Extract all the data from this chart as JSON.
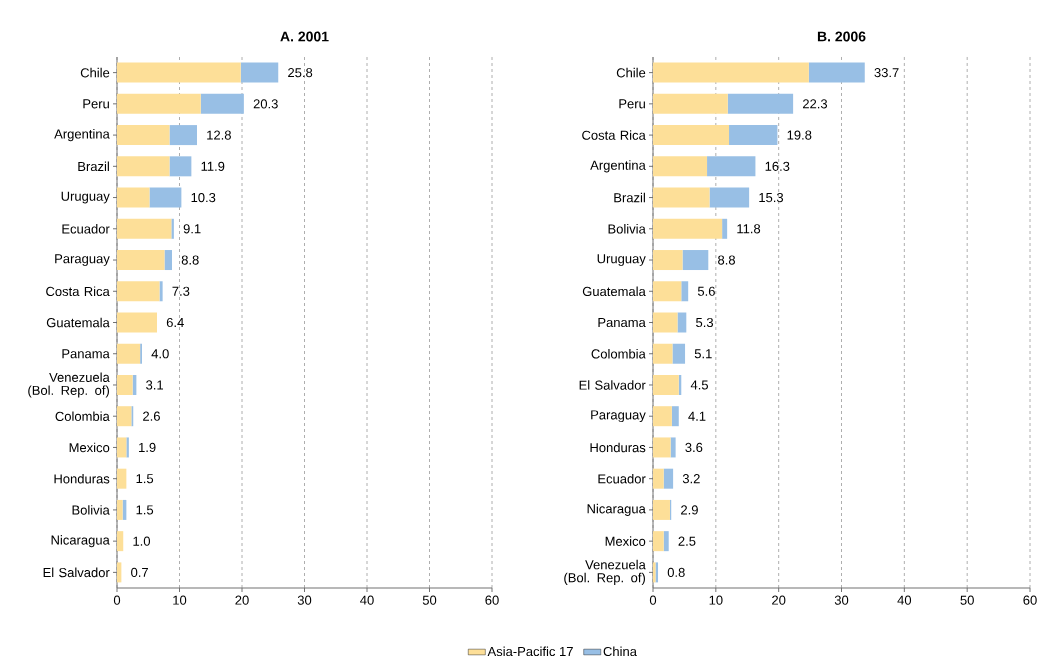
{
  "chart_data": [
    {
      "type": "bar",
      "orientation": "horizontal",
      "stacked": true,
      "title": "A. 2001",
      "categories": [
        "Chile",
        "Peru",
        "Argentina",
        "Brazil",
        "Uruguay",
        "Ecuador",
        "Paraguay",
        "Costa Rica",
        "Guatemala",
        "Panama",
        "Venezuela (Bol. Rep. of)",
        "Colombia",
        "Mexico",
        "Honduras",
        "Bolivia",
        "Nicaragua",
        "El Salvador"
      ],
      "series": [
        {
          "name": "Asia-Pacific 17",
          "color": "#fddf98",
          "values": [
            19.8,
            13.4,
            8.4,
            8.4,
            5.2,
            8.7,
            7.6,
            6.8,
            6.4,
            3.7,
            2.5,
            2.3,
            1.5,
            1.5,
            0.9,
            1.0,
            0.7
          ]
        },
        {
          "name": "China",
          "color": "#98bfe5",
          "values": [
            6.0,
            6.9,
            4.4,
            3.5,
            5.1,
            0.4,
            1.2,
            0.5,
            0,
            0.3,
            0.6,
            0.3,
            0.4,
            0,
            0.6,
            0,
            0
          ]
        }
      ],
      "totals": [
        "25.8",
        "20.3",
        "12.8",
        "11.9",
        "10.3",
        "9.1",
        "8.8",
        "7.3",
        "6.4",
        "4.0",
        "3.1",
        "2.6",
        "1.9",
        "1.5",
        "1.5",
        "1.0",
        "0.7"
      ],
      "xlim": [
        0,
        60
      ],
      "xticks": [
        0,
        10,
        20,
        30,
        40,
        50,
        60
      ],
      "grid": "x",
      "legend": "bottom"
    },
    {
      "type": "bar",
      "orientation": "horizontal",
      "stacked": true,
      "title": "B. 2006",
      "categories": [
        "Chile",
        "Peru",
        "Costa Rica",
        "Argentina",
        "Brazil",
        "Bolivia",
        "Uruguay",
        "Guatemala",
        "Panama",
        "Colombia",
        "El Salvador",
        "Paraguay",
        "Honduras",
        "Ecuador",
        "Nicaragua",
        "Mexico",
        "Venezuela (Bol. Rep. of)"
      ],
      "series": [
        {
          "color": "#fddf98",
          "values": [
            24.8,
            11.9,
            12.1,
            8.6,
            9.0,
            11.0,
            4.7,
            4.5,
            3.9,
            3.1,
            4.1,
            3.0,
            2.8,
            1.7,
            2.7,
            1.7,
            0.4
          ]
        },
        {
          "color": "#98bfe5",
          "values": [
            8.9,
            10.4,
            7.7,
            7.7,
            6.3,
            0.8,
            4.1,
            1.1,
            1.4,
            2.0,
            0.4,
            1.1,
            0.8,
            1.5,
            0.2,
            0.8,
            0.4
          ]
        }
      ],
      "totals": [
        "33.7",
        "22.3",
        "19.8",
        "16.3",
        "15.3",
        "11.8",
        "8.8",
        "5.6",
        "5.3",
        "5.1",
        "4.5",
        "4.1",
        "3.6",
        "3.2",
        "2.9",
        "2.5",
        "0.8"
      ],
      "xlim": [
        0,
        60
      ],
      "xticks": [
        0,
        10,
        20,
        30,
        40,
        50,
        60
      ],
      "grid": "x"
    }
  ]
}
